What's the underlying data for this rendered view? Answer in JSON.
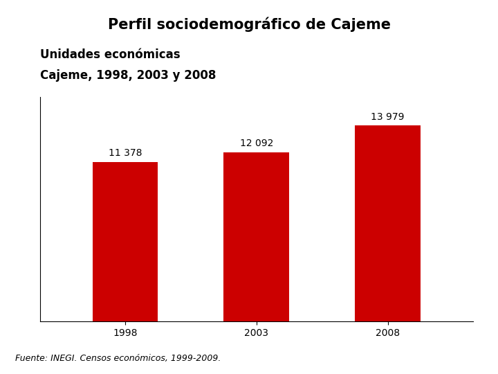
{
  "chart_data": {
    "type": "bar",
    "title": "Unidades económicas",
    "subtitle": "Cajeme, 1998, 2003 y 2008",
    "annotations": [
      "Perfil sociodemográfico de Cajeme",
      "Fuente: INEGI. Censos económicos, 1999-2009."
    ],
    "categories": [
      "1998",
      "2003",
      "2008"
    ],
    "values": [
      11378,
      12092,
      13979
    ],
    "value_labels": [
      "11 378",
      "12 092",
      "13 979"
    ],
    "data_labels": true,
    "color": "#cc0000",
    "ylim": [
      0,
      16000
    ],
    "tick_labels": "x",
    "grid": false
  }
}
